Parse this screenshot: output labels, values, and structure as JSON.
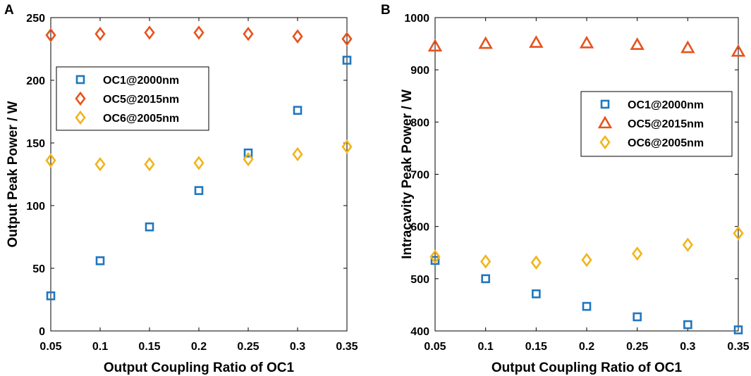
{
  "colors": {
    "oc1": "#1f77c0",
    "oc5": "#e8521e",
    "oc6": "#f2b418",
    "axis": "#000000"
  },
  "chart_data": [
    {
      "panel_label": "A",
      "type": "scatter",
      "xlabel": "Output Coupling Ratio of OC1",
      "ylabel": "Output Peak Power / W",
      "xlim": [
        0.05,
        0.35
      ],
      "ylim": [
        0,
        250
      ],
      "xticks": [
        "0.05",
        "0.1",
        "0.15",
        "0.2",
        "0.25",
        "0.3",
        "0.35"
      ],
      "yticks": [
        "0",
        "50",
        "100",
        "150",
        "200",
        "250"
      ],
      "legend_position": "middle-left",
      "x": [
        0.05,
        0.1,
        0.15,
        0.2,
        0.25,
        0.3,
        0.35
      ],
      "series": [
        {
          "name": "OC1@2000nm",
          "marker": "square",
          "color": "#1f77c0",
          "values": [
            28,
            56,
            83,
            112,
            142,
            176,
            216
          ]
        },
        {
          "name": "OC5@2015nm",
          "marker": "diamond",
          "color": "#e8521e",
          "values": [
            236,
            237,
            238,
            238,
            237,
            235,
            233
          ]
        },
        {
          "name": "OC6@2005nm",
          "marker": "diamond",
          "color": "#f2b418",
          "values": [
            136,
            133,
            133,
            134,
            137,
            141,
            147
          ]
        }
      ]
    },
    {
      "panel_label": "B",
      "type": "scatter",
      "xlabel": "Output Coupling Ratio of OC1",
      "ylabel": "Intracavity Peak Power / W",
      "xlim": [
        0.05,
        0.35
      ],
      "ylim": [
        400,
        1000
      ],
      "xticks": [
        "0.05",
        "0.1",
        "0.15",
        "0.2",
        "0.25",
        "0.3",
        "0.35"
      ],
      "yticks": [
        "400",
        "500",
        "600",
        "700",
        "800",
        "900",
        "1000"
      ],
      "legend_position": "middle-right",
      "x": [
        0.05,
        0.1,
        0.15,
        0.2,
        0.25,
        0.3,
        0.35
      ],
      "series": [
        {
          "name": "OC1@2000nm",
          "marker": "square",
          "color": "#1f77c0",
          "values": [
            535,
            500,
            471,
            447,
            427,
            412,
            402
          ]
        },
        {
          "name": "OC5@2015nm",
          "marker": "triangle",
          "color": "#e8521e",
          "values": [
            945,
            950,
            952,
            951,
            948,
            942,
            935
          ]
        },
        {
          "name": "OC6@2005nm",
          "marker": "diamond",
          "color": "#f2b418",
          "values": [
            542,
            533,
            531,
            536,
            548,
            565,
            587
          ]
        }
      ]
    }
  ]
}
